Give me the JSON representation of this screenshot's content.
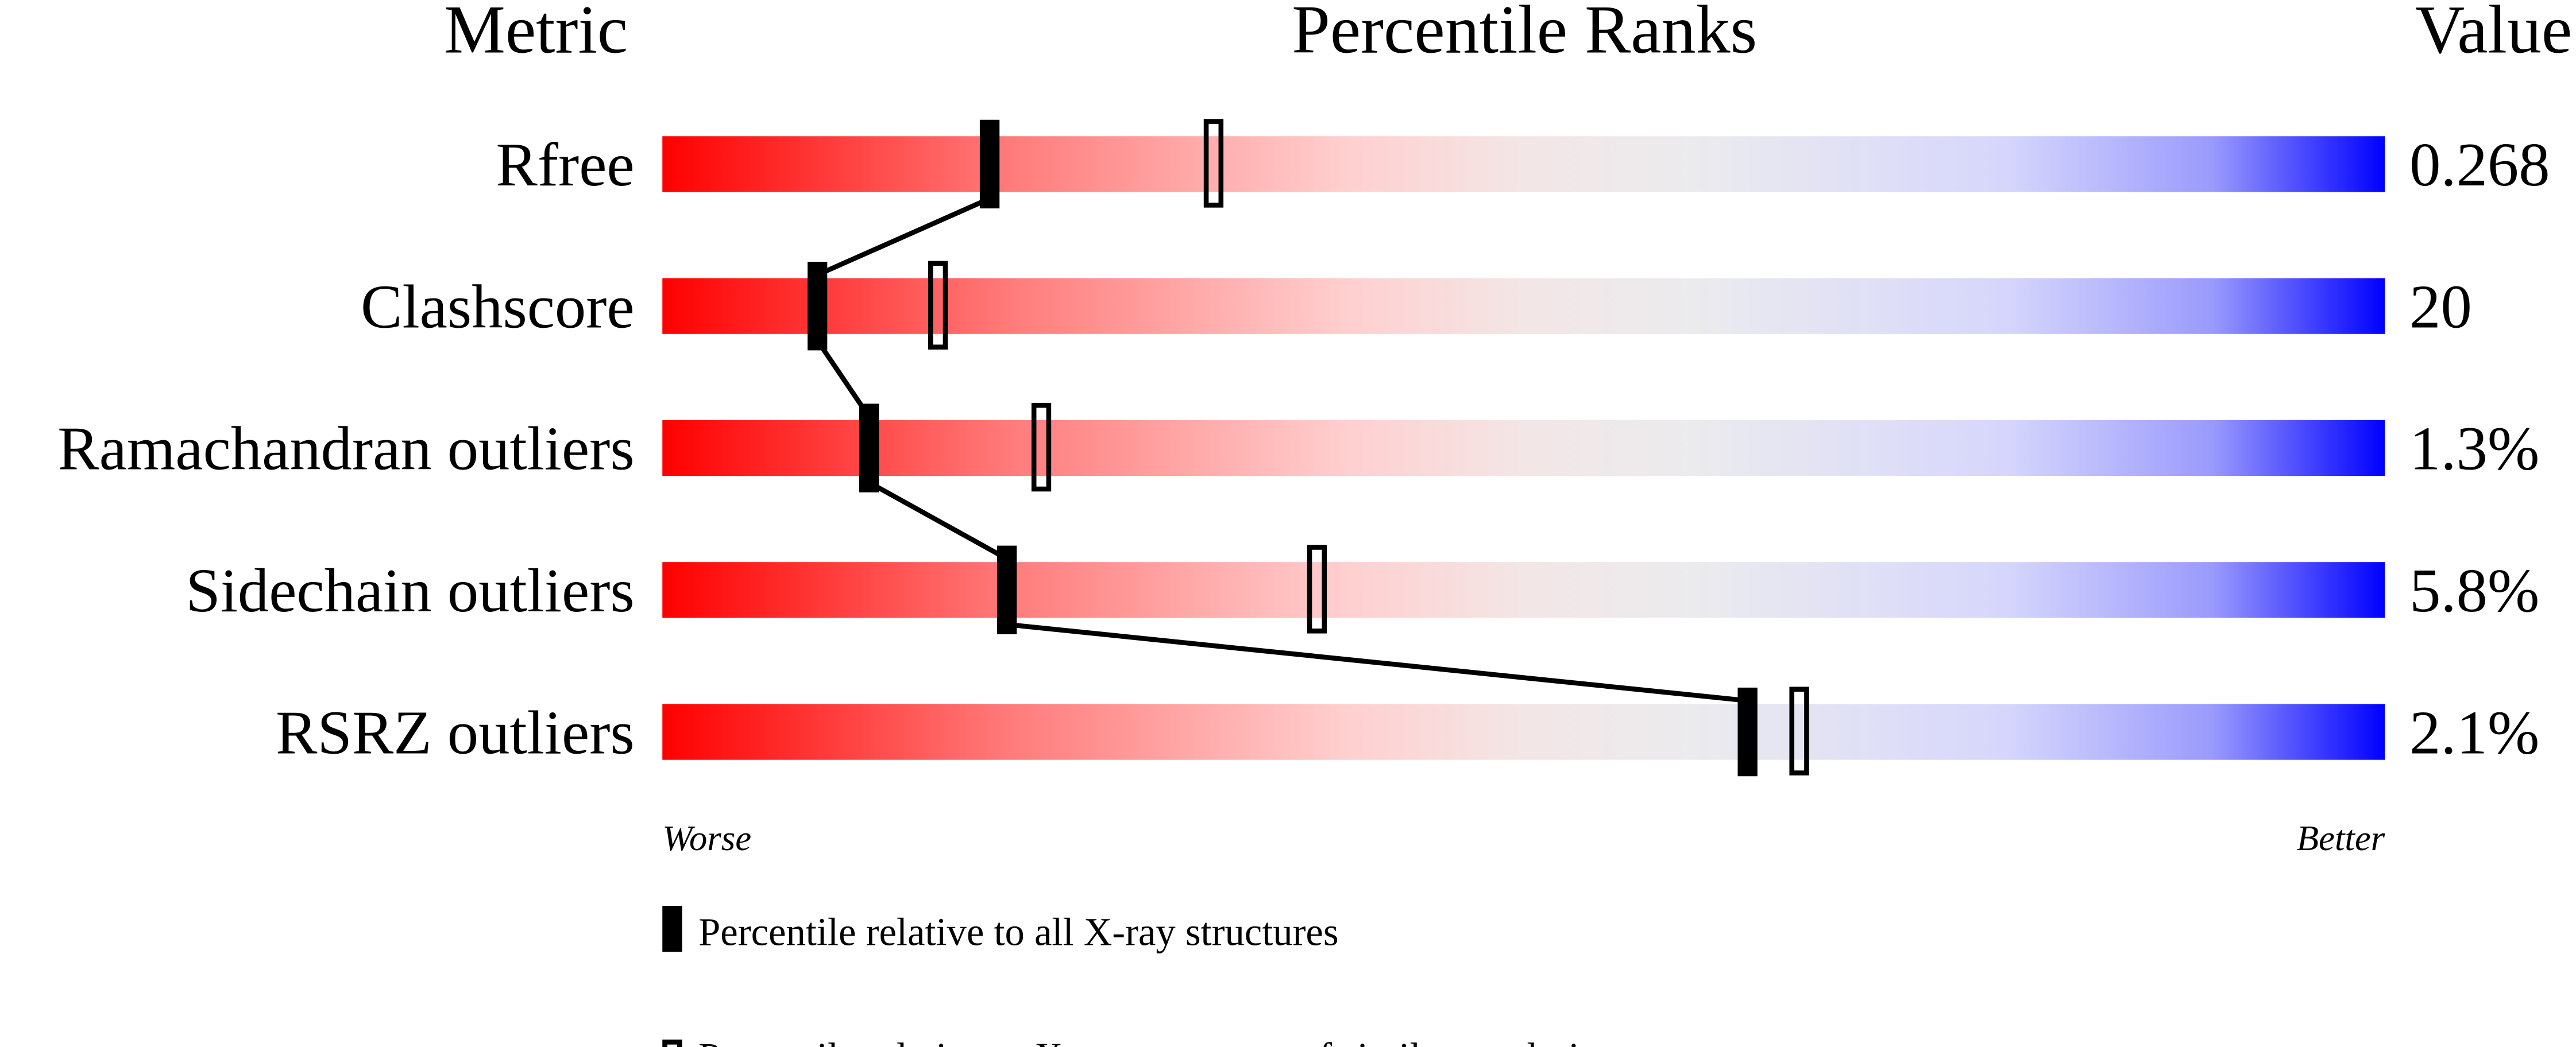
{
  "chart_data": {
    "type": "bar",
    "headers": {
      "metric": "Metric",
      "ranks": "Percentile Ranks",
      "value": "Value"
    },
    "xlim": [
      0,
      100
    ],
    "scale_left_label": "Worse",
    "scale_right_label": "Better",
    "colors": {
      "worse": "#ff0000",
      "middle": "#eeeeee",
      "better": "#0000ff",
      "marker": "#000000"
    },
    "rows": [
      {
        "metric": "Rfree",
        "value": "0.268",
        "percentile_all": 19,
        "percentile_similar": 32
      },
      {
        "metric": "Clashscore",
        "value": "20",
        "percentile_all": 9,
        "percentile_similar": 16
      },
      {
        "metric": "Ramachandran outliers",
        "value": "1.3%",
        "percentile_all": 12,
        "percentile_similar": 22
      },
      {
        "metric": "Sidechain outliers",
        "value": "5.8%",
        "percentile_all": 20,
        "percentile_similar": 38
      },
      {
        "metric": "RSRZ outliers",
        "value": "2.1%",
        "percentile_all": 63,
        "percentile_similar": 66
      }
    ],
    "legend": [
      {
        "marker": "filled",
        "label": "Percentile relative to all X-ray structures"
      },
      {
        "marker": "open",
        "label": "Percentile relative to X-ray structures of similar resolution"
      }
    ],
    "legend_position": "bottom"
  }
}
